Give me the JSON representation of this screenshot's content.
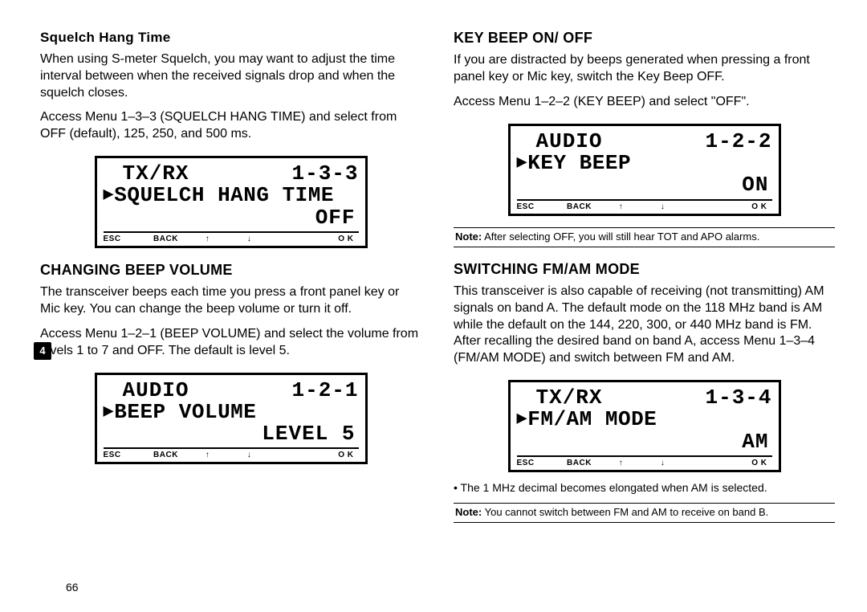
{
  "left": {
    "sec1": {
      "title": "Squelch Hang Time",
      "p1": "When using S-meter Squelch, you may want to adjust the time interval between when the received signals drop and when the squelch closes.",
      "p2": "Access Menu 1–3–3 (SQUELCH HANG TIME) and select from OFF (default), 125, 250, and 500 ms."
    },
    "lcd1": {
      "row1_left": "TX/RX",
      "row1_right": "1-3-3",
      "row2": "SQUELCH HANG TIME",
      "row3": "OFF",
      "sk": [
        "ESC",
        "BACK",
        "↑",
        "↓",
        "",
        "O K"
      ]
    },
    "sec2": {
      "title": "CHANGING BEEP VOLUME",
      "p1": "The transceiver beeps each time you press a front panel key or Mic key.  You can change the beep volume or turn it off.",
      "p2": "Access Menu 1–2–1 (BEEP VOLUME) and select the volume from levels 1 to 7 and OFF.  The default is level 5."
    },
    "lcd2": {
      "row1_left": "AUDIO",
      "row1_right": "1-2-1",
      "row2": "BEEP VOLUME",
      "row3": "LEVEL 5",
      "sk": [
        "ESC",
        "BACK",
        "↑",
        "↓",
        "",
        "O K"
      ]
    }
  },
  "right": {
    "sec1": {
      "title": "KEY BEEP ON/ OFF",
      "p1": "If you are distracted by beeps generated when pressing a front panel key or Mic key, switch the Key Beep OFF.",
      "p2": "Access Menu 1–2–2 (KEY BEEP) and select \"OFF\"."
    },
    "lcd1": {
      "row1_left": "AUDIO",
      "row1_right": "1-2-2",
      "row2": "KEY BEEP",
      "row3": "ON",
      "sk": [
        "ESC",
        "BACK",
        "↑",
        "↓",
        "",
        "O K"
      ]
    },
    "note1_label": "Note:",
    "note1": "After selecting OFF, you will still hear TOT and APO alarms.",
    "sec2": {
      "title": "SWITCHING FM/AM MODE",
      "p1": "This transceiver is also capable of receiving (not transmitting) AM signals on band A.  The default mode on the 118 MHz band is AM while the default on the 144, 220, 300, or 440 MHz band is FM.  After recalling the desired band on band A, access Menu 1–3–4 (FM/AM MODE) and switch between FM and AM."
    },
    "lcd2": {
      "row1_left": "TX/RX",
      "row1_right": "1-3-4",
      "row2": "FM/AM MODE",
      "row3": "AM",
      "sk": [
        "ESC",
        "BACK",
        "↑",
        "↓",
        "",
        "O K"
      ]
    },
    "bullet1": "The 1 MHz decimal becomes elongated when AM is selected.",
    "note2_label": "Note:",
    "note2": "You cannot switch between FM and AM to receive on band B."
  },
  "page_number": "66",
  "side_tab": "4"
}
